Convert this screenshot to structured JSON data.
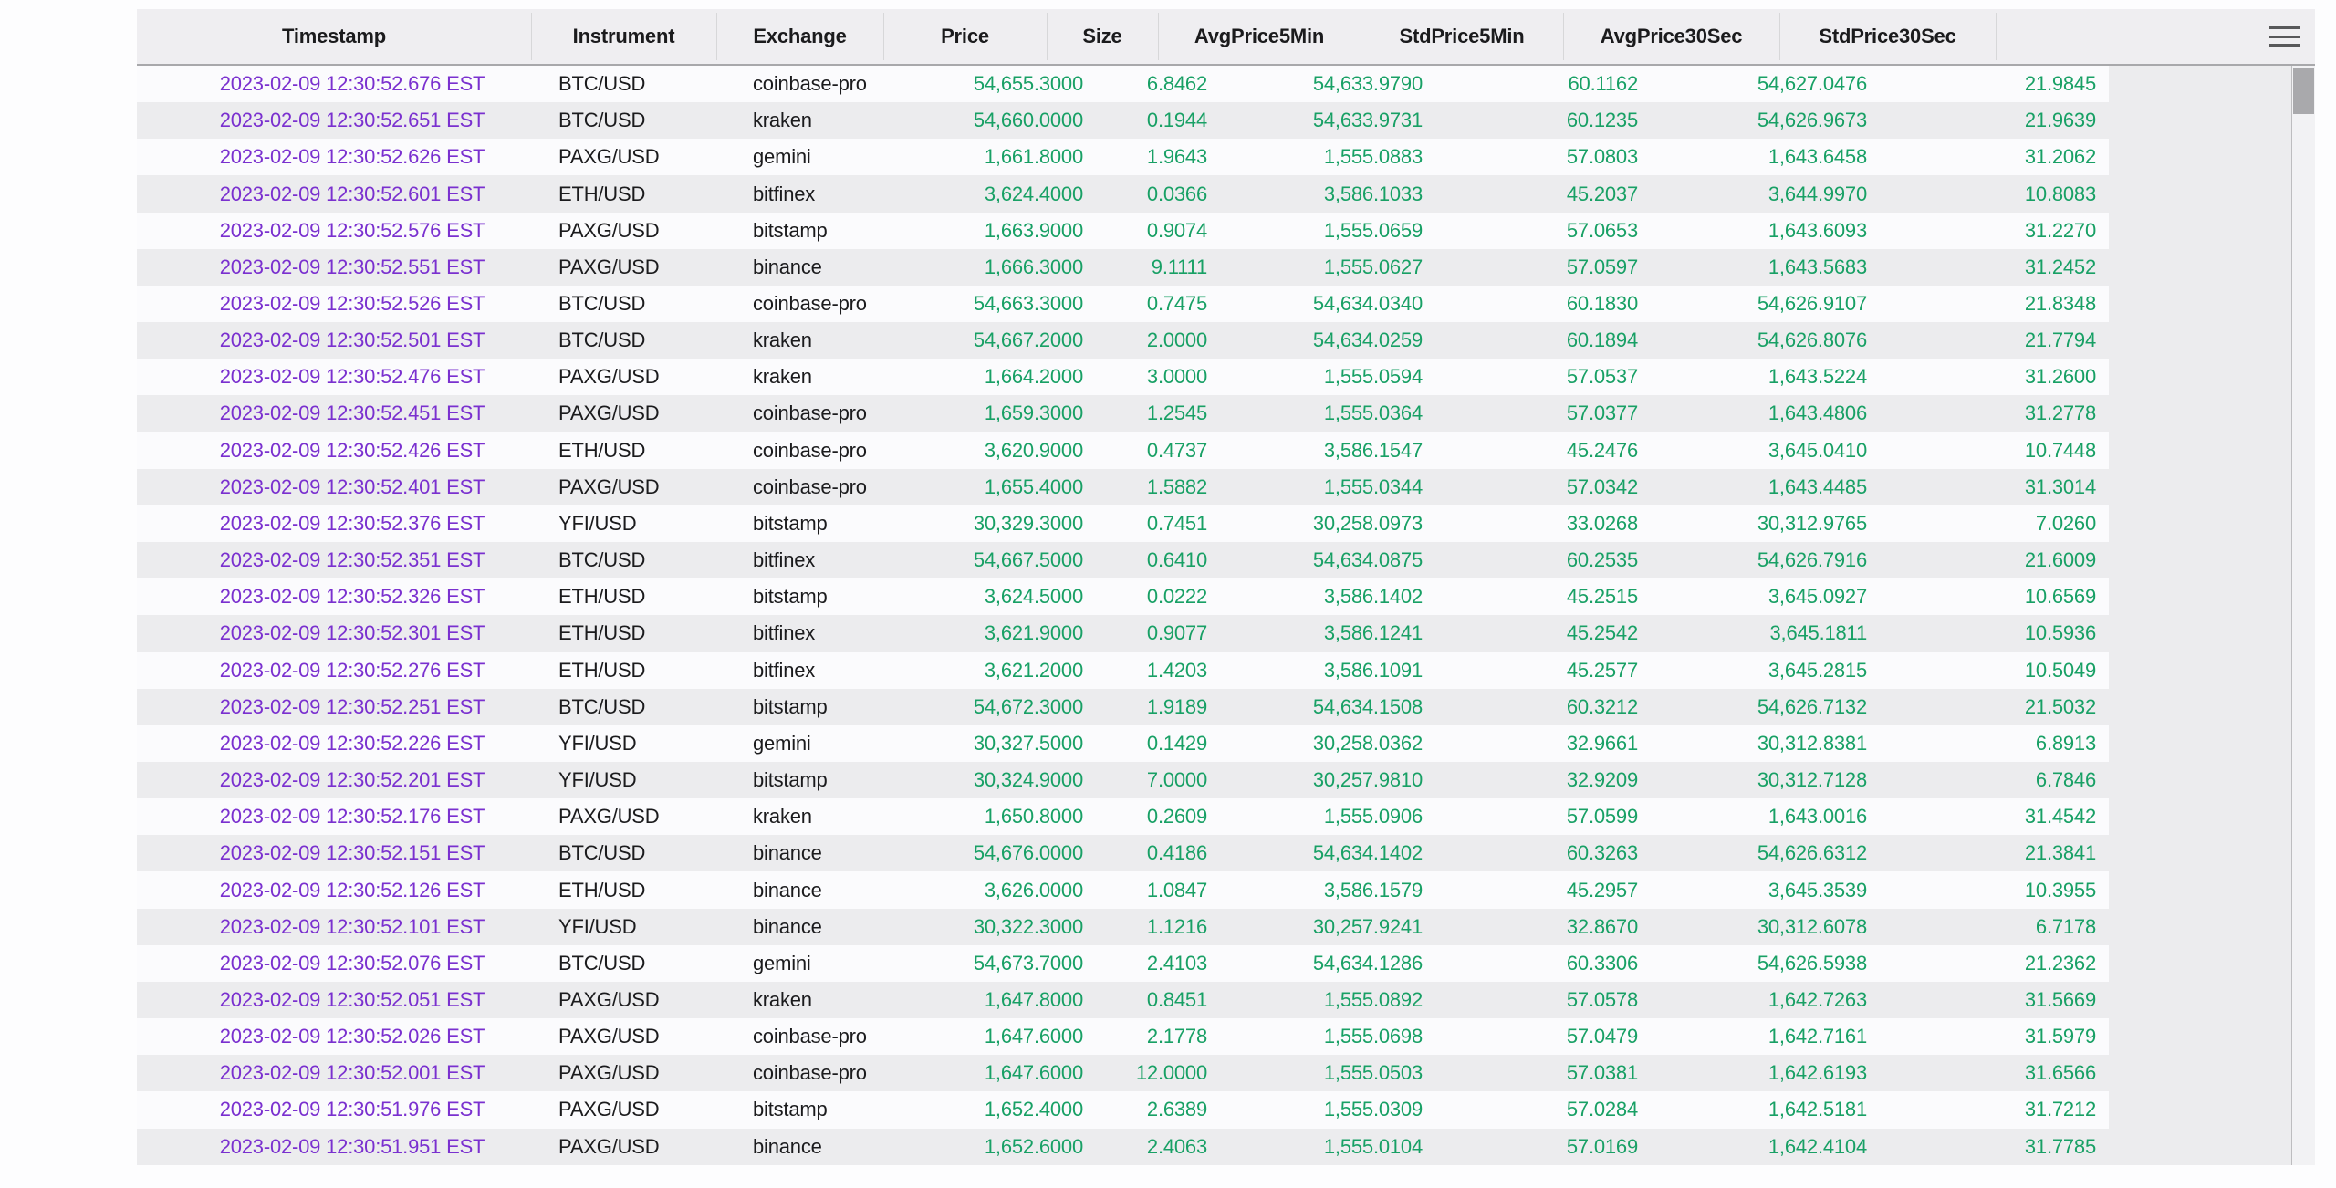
{
  "colors": {
    "timestamp": "#7a30cf",
    "number": "#18a065",
    "text_dark": "#1b1b1d",
    "header_bg": "#efeef1",
    "header_border": "#a8a8ab",
    "divider": "#d7d7d9",
    "row_bg": "#fbfbfd",
    "row_alt_bg": "#ececee"
  },
  "table": {
    "columns": [
      {
        "label": "Timestamp",
        "align": "center"
      },
      {
        "label": "Instrument",
        "align": "left"
      },
      {
        "label": "Exchange",
        "align": "left"
      },
      {
        "label": "Price",
        "align": "right"
      },
      {
        "label": "Size",
        "align": "right"
      },
      {
        "label": "AvgPrice5Min",
        "align": "right"
      },
      {
        "label": "StdPrice5Min",
        "align": "right"
      },
      {
        "label": "AvgPrice30Sec",
        "align": "right"
      },
      {
        "label": "StdPrice30Sec",
        "align": "right"
      }
    ],
    "rows": [
      [
        "2023-02-09 12:30:52.676 EST",
        "BTC/USD",
        "coinbase-pro",
        "54,655.3000",
        "6.8462",
        "54,633.9790",
        "60.1162",
        "54,627.0476",
        "21.9845"
      ],
      [
        "2023-02-09 12:30:52.651 EST",
        "BTC/USD",
        "kraken",
        "54,660.0000",
        "0.1944",
        "54,633.9731",
        "60.1235",
        "54,626.9673",
        "21.9639"
      ],
      [
        "2023-02-09 12:30:52.626 EST",
        "PAXG/USD",
        "gemini",
        "1,661.8000",
        "1.9643",
        "1,555.0883",
        "57.0803",
        "1,643.6458",
        "31.2062"
      ],
      [
        "2023-02-09 12:30:52.601 EST",
        "ETH/USD",
        "bitfinex",
        "3,624.4000",
        "0.0366",
        "3,586.1033",
        "45.2037",
        "3,644.9970",
        "10.8083"
      ],
      [
        "2023-02-09 12:30:52.576 EST",
        "PAXG/USD",
        "bitstamp",
        "1,663.9000",
        "0.9074",
        "1,555.0659",
        "57.0653",
        "1,643.6093",
        "31.2270"
      ],
      [
        "2023-02-09 12:30:52.551 EST",
        "PAXG/USD",
        "binance",
        "1,666.3000",
        "9.1111",
        "1,555.0627",
        "57.0597",
        "1,643.5683",
        "31.2452"
      ],
      [
        "2023-02-09 12:30:52.526 EST",
        "BTC/USD",
        "coinbase-pro",
        "54,663.3000",
        "0.7475",
        "54,634.0340",
        "60.1830",
        "54,626.9107",
        "21.8348"
      ],
      [
        "2023-02-09 12:30:52.501 EST",
        "BTC/USD",
        "kraken",
        "54,667.2000",
        "2.0000",
        "54,634.0259",
        "60.1894",
        "54,626.8076",
        "21.7794"
      ],
      [
        "2023-02-09 12:30:52.476 EST",
        "PAXG/USD",
        "kraken",
        "1,664.2000",
        "3.0000",
        "1,555.0594",
        "57.0537",
        "1,643.5224",
        "31.2600"
      ],
      [
        "2023-02-09 12:30:52.451 EST",
        "PAXG/USD",
        "coinbase-pro",
        "1,659.3000",
        "1.2545",
        "1,555.0364",
        "57.0377",
        "1,643.4806",
        "31.2778"
      ],
      [
        "2023-02-09 12:30:52.426 EST",
        "ETH/USD",
        "coinbase-pro",
        "3,620.9000",
        "0.4737",
        "3,586.1547",
        "45.2476",
        "3,645.0410",
        "10.7448"
      ],
      [
        "2023-02-09 12:30:52.401 EST",
        "PAXG/USD",
        "coinbase-pro",
        "1,655.4000",
        "1.5882",
        "1,555.0344",
        "57.0342",
        "1,643.4485",
        "31.3014"
      ],
      [
        "2023-02-09 12:30:52.376 EST",
        "YFI/USD",
        "bitstamp",
        "30,329.3000",
        "0.7451",
        "30,258.0973",
        "33.0268",
        "30,312.9765",
        "7.0260"
      ],
      [
        "2023-02-09 12:30:52.351 EST",
        "BTC/USD",
        "bitfinex",
        "54,667.5000",
        "0.6410",
        "54,634.0875",
        "60.2535",
        "54,626.7916",
        "21.6009"
      ],
      [
        "2023-02-09 12:30:52.326 EST",
        "ETH/USD",
        "bitstamp",
        "3,624.5000",
        "0.0222",
        "3,586.1402",
        "45.2515",
        "3,645.0927",
        "10.6569"
      ],
      [
        "2023-02-09 12:30:52.301 EST",
        "ETH/USD",
        "bitfinex",
        "3,621.9000",
        "0.9077",
        "3,586.1241",
        "45.2542",
        "3,645.1811",
        "10.5936"
      ],
      [
        "2023-02-09 12:30:52.276 EST",
        "ETH/USD",
        "bitfinex",
        "3,621.2000",
        "1.4203",
        "3,586.1091",
        "45.2577",
        "3,645.2815",
        "10.5049"
      ],
      [
        "2023-02-09 12:30:52.251 EST",
        "BTC/USD",
        "bitstamp",
        "54,672.3000",
        "1.9189",
        "54,634.1508",
        "60.3212",
        "54,626.7132",
        "21.5032"
      ],
      [
        "2023-02-09 12:30:52.226 EST",
        "YFI/USD",
        "gemini",
        "30,327.5000",
        "0.1429",
        "30,258.0362",
        "32.9661",
        "30,312.8381",
        "6.8913"
      ],
      [
        "2023-02-09 12:30:52.201 EST",
        "YFI/USD",
        "bitstamp",
        "30,324.9000",
        "7.0000",
        "30,257.9810",
        "32.9209",
        "30,312.7128",
        "6.7846"
      ],
      [
        "2023-02-09 12:30:52.176 EST",
        "PAXG/USD",
        "kraken",
        "1,650.8000",
        "0.2609",
        "1,555.0906",
        "57.0599",
        "1,643.0016",
        "31.4542"
      ],
      [
        "2023-02-09 12:30:52.151 EST",
        "BTC/USD",
        "binance",
        "54,676.0000",
        "0.4186",
        "54,634.1402",
        "60.3263",
        "54,626.6312",
        "21.3841"
      ],
      [
        "2023-02-09 12:30:52.126 EST",
        "ETH/USD",
        "binance",
        "3,626.0000",
        "1.0847",
        "3,586.1579",
        "45.2957",
        "3,645.3539",
        "10.3955"
      ],
      [
        "2023-02-09 12:30:52.101 EST",
        "YFI/USD",
        "binance",
        "30,322.3000",
        "1.1216",
        "30,257.9241",
        "32.8670",
        "30,312.6078",
        "6.7178"
      ],
      [
        "2023-02-09 12:30:52.076 EST",
        "BTC/USD",
        "gemini",
        "54,673.7000",
        "2.4103",
        "54,634.1286",
        "60.3306",
        "54,626.5938",
        "21.2362"
      ],
      [
        "2023-02-09 12:30:52.051 EST",
        "PAXG/USD",
        "kraken",
        "1,647.8000",
        "0.8451",
        "1,555.0892",
        "57.0578",
        "1,642.7263",
        "31.5669"
      ],
      [
        "2023-02-09 12:30:52.026 EST",
        "PAXG/USD",
        "coinbase-pro",
        "1,647.6000",
        "2.1778",
        "1,555.0698",
        "57.0479",
        "1,642.7161",
        "31.5979"
      ],
      [
        "2023-02-09 12:30:52.001 EST",
        "PAXG/USD",
        "coinbase-pro",
        "1,647.6000",
        "12.0000",
        "1,555.0503",
        "57.0381",
        "1,642.6193",
        "31.6566"
      ],
      [
        "2023-02-09 12:30:51.976 EST",
        "PAXG/USD",
        "bitstamp",
        "1,652.4000",
        "2.6389",
        "1,555.0309",
        "57.0284",
        "1,642.5181",
        "31.7212"
      ],
      [
        "2023-02-09 12:30:51.951 EST",
        "PAXG/USD",
        "binance",
        "1,652.6000",
        "2.4063",
        "1,555.0104",
        "57.0169",
        "1,642.4104",
        "31.7785"
      ]
    ]
  }
}
